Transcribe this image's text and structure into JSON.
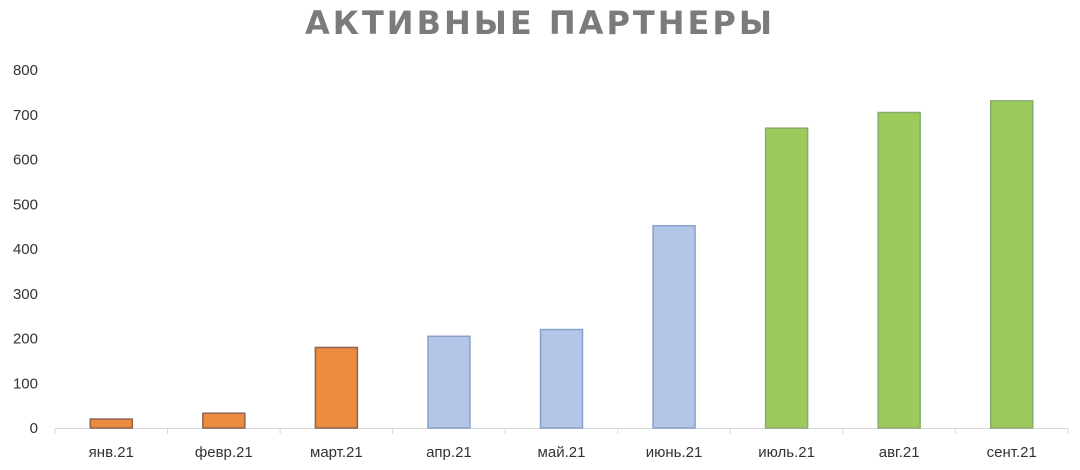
{
  "chart_data": {
    "type": "bar",
    "title": "АКТИВНЫЕ ПАРТНЕРЫ",
    "xlabel": "",
    "ylabel": "",
    "categories": [
      "янв.21",
      "февр.21",
      "март.21",
      "апр.21",
      "май.21",
      "июнь.21",
      "июль.21",
      "авг.21",
      "сент.21"
    ],
    "values": [
      20,
      33,
      180,
      205,
      220,
      452,
      670,
      705,
      731
    ],
    "ylim": [
      0,
      800
    ],
    "yticks": [
      0,
      100,
      200,
      300,
      400,
      500,
      600,
      700,
      800
    ],
    "grid": false,
    "legend": "none",
    "bar_colors": [
      "#ec8a3e",
      "#ec8a3e",
      "#ec8a3e",
      "#b3c6e8",
      "#b3c6e8",
      "#b3c6e8",
      "#9ccb5c",
      "#9ccb5c",
      "#9ccb5c"
    ],
    "bar_edge_colors": [
      "#8e6452",
      "#8e6452",
      "#8e6452",
      "#8aa0cc",
      "#8aa0cc",
      "#8aa0cc",
      "#86ab6a",
      "#86ab6a",
      "#86ab6a"
    ],
    "axis_color": "#d9d9d9",
    "title_color": "#7b7b7b"
  }
}
